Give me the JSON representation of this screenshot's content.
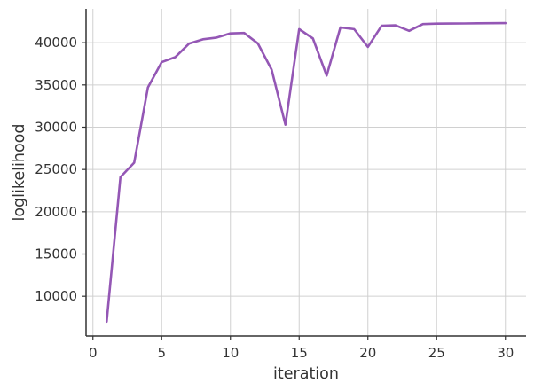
{
  "chart_data": {
    "type": "line",
    "title": "",
    "xlabel": "iteration",
    "ylabel": "loglikelihood",
    "xlim": [
      -0.5,
      31.5
    ],
    "ylim": [
      5300,
      44000
    ],
    "xticks": [
      0,
      5,
      10,
      15,
      20,
      25,
      30
    ],
    "yticks": [
      10000,
      15000,
      20000,
      25000,
      30000,
      35000,
      40000
    ],
    "grid": true,
    "line_color": "#9457b5",
    "series": [
      {
        "x": [
          1,
          2,
          3,
          4,
          5,
          6,
          7,
          8,
          9,
          10,
          11,
          12,
          13,
          14,
          15,
          16,
          17,
          18,
          19,
          20,
          21,
          22,
          23,
          24,
          25,
          26,
          27,
          28,
          29,
          30
        ],
        "values": [
          7000,
          24100,
          25800,
          34700,
          37700,
          38300,
          39900,
          40400,
          40600,
          41100,
          41150,
          39900,
          36800,
          30300,
          41600,
          40500,
          36100,
          41800,
          41600,
          39500,
          42000,
          42050,
          41400,
          42200,
          42250,
          42260,
          42270,
          42290,
          42300,
          42310
        ]
      }
    ]
  }
}
